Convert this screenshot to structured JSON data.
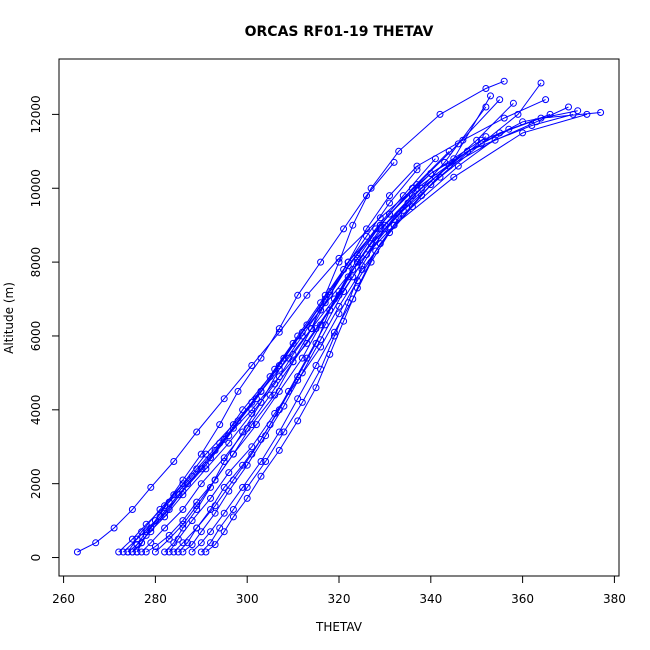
{
  "chart_data": {
    "type": "line",
    "title": "ORCAS RF01-19 THETAV",
    "xlabel": "THETAV",
    "ylabel": "Altitude (m)",
    "xlim": [
      259,
      381
    ],
    "ylim": [
      -500,
      13500
    ],
    "x_ticks": [
      260,
      280,
      300,
      320,
      340,
      360,
      380
    ],
    "y_ticks": [
      0,
      2000,
      4000,
      6000,
      8000,
      10000,
      12000
    ],
    "series_color": "#0000ff",
    "marker": "open-circle",
    "series": [
      {
        "x": [
          276,
          278,
          282,
          286,
          291,
          296,
          301,
          306,
          310,
          314,
          317,
          320,
          323,
          327,
          333,
          342,
          352,
          356
        ],
        "y": [
          150,
          600,
          1100,
          1700,
          2400,
          3100,
          3900,
          4700,
          5500,
          6200,
          7100,
          8000,
          9000,
          10000,
          11000,
          12000,
          12700,
          12900
        ]
      },
      {
        "x": [
          274,
          277,
          281,
          286,
          291,
          297,
          303,
          309,
          314,
          319,
          324,
          330,
          338,
          348,
          360,
          372
        ],
        "y": [
          150,
          700,
          1300,
          2000,
          2800,
          3600,
          4500,
          5400,
          6200,
          7000,
          8000,
          9000,
          10000,
          11000,
          11800,
          12100
        ]
      },
      {
        "x": [
          273,
          276,
          280,
          284,
          289,
          294,
          299,
          305,
          310,
          316,
          323,
          332,
          345,
          360,
          374
        ],
        "y": [
          150,
          500,
          1000,
          1700,
          2400,
          3100,
          4000,
          4900,
          5800,
          6700,
          7800,
          9000,
          10300,
          11500,
          12000
        ]
      },
      {
        "x": [
          263,
          267,
          271,
          275,
          279,
          284,
          289,
          295,
          301,
          307,
          313,
          320,
          329,
          340,
          355,
          366
        ],
        "y": [
          150,
          400,
          800,
          1300,
          1900,
          2600,
          3400,
          4300,
          5200,
          6100,
          7100,
          8100,
          9200,
          10400,
          11500,
          12000
        ]
      },
      {
        "x": [
          272,
          275,
          278,
          283,
          288,
          293,
          298,
          303,
          308,
          313,
          318,
          324,
          331,
          340,
          351,
          364,
          377
        ],
        "y": [
          150,
          500,
          900,
          1500,
          2200,
          2900,
          3700,
          4500,
          5400,
          6300,
          7200,
          8200,
          9300,
          10400,
          11300,
          11900,
          12050
        ]
      },
      {
        "x": [
          275,
          277,
          279,
          283,
          287,
          292,
          297,
          302,
          307,
          312,
          317,
          322,
          329,
          337,
          346,
          355
        ],
        "y": [
          150,
          400,
          800,
          1300,
          2000,
          2700,
          3500,
          4300,
          5200,
          6100,
          7000,
          8000,
          9000,
          10100,
          11200,
          12400
        ]
      },
      {
        "x": [
          283,
          285,
          288,
          292,
          296,
          301,
          306,
          311,
          316,
          320,
          324,
          329,
          336,
          346,
          357
        ],
        "y": [
          150,
          500,
          1000,
          1600,
          2300,
          3000,
          3900,
          4800,
          5700,
          6600,
          7500,
          8500,
          9500,
          10600,
          11600
        ]
      },
      {
        "x": [
          285,
          287,
          289,
          293,
          297,
          301,
          305,
          309,
          313,
          317,
          321,
          326,
          333,
          341,
          350,
          358
        ],
        "y": [
          150,
          400,
          800,
          1400,
          2100,
          2800,
          3600,
          4500,
          5400,
          6300,
          7200,
          8200,
          9300,
          10300,
          11300,
          12300
        ]
      },
      {
        "x": [
          290,
          292,
          294,
          297,
          300,
          304,
          308,
          312,
          316,
          319,
          322,
          325,
          330,
          337,
          348,
          362,
          371
        ],
        "y": [
          150,
          400,
          800,
          1300,
          1900,
          2600,
          3400,
          4200,
          5100,
          6000,
          6900,
          7900,
          8900,
          10000,
          11000,
          11700,
          12000
        ]
      },
      {
        "x": [
          288,
          290,
          292,
          295,
          299,
          303,
          307,
          311,
          315,
          319,
          323,
          327,
          332,
          340,
          352
        ],
        "y": [
          150,
          400,
          700,
          1200,
          1900,
          2600,
          3400,
          4300,
          5200,
          6100,
          7000,
          8000,
          9000,
          10100,
          11400
        ]
      },
      {
        "x": [
          280,
          283,
          286,
          289,
          293,
          297,
          301,
          306,
          310,
          314,
          318,
          322,
          326,
          331,
          337,
          347,
          356,
          365
        ],
        "y": [
          150,
          500,
          900,
          1400,
          2100,
          2800,
          3600,
          4400,
          5300,
          6200,
          7100,
          8000,
          8900,
          9800,
          10600,
          11300,
          11900,
          12400
        ]
      },
      {
        "x": [
          277,
          279,
          282,
          286,
          290,
          295,
          300,
          305,
          310,
          315,
          320,
          324,
          329,
          336,
          344,
          354,
          363,
          370
        ],
        "y": [
          150,
          400,
          800,
          1300,
          2000,
          2700,
          3500,
          4400,
          5300,
          6200,
          7100,
          8000,
          8900,
          9800,
          10600,
          11300,
          11800,
          12200
        ]
      },
      {
        "x": [
          275,
          276,
          278,
          281,
          285,
          290,
          295,
          301,
          307,
          313,
          318,
          323,
          328,
          335,
          343,
          352
        ],
        "y": [
          150,
          350,
          700,
          1100,
          1700,
          2400,
          3200,
          4000,
          4900,
          5800,
          6700,
          7600,
          8600,
          9600,
          10700,
          12200
        ]
      },
      {
        "x": [
          282,
          284,
          286,
          289,
          292,
          295,
          299,
          303,
          307,
          312,
          317,
          322,
          328,
          334,
          341
        ],
        "y": [
          150,
          400,
          800,
          1300,
          1900,
          2600,
          3400,
          4200,
          5100,
          6000,
          6900,
          7900,
          8900,
          9800,
          10800
        ]
      },
      {
        "x": [
          286,
          288,
          290,
          293,
          296,
          300,
          304,
          308,
          312,
          316,
          320,
          325,
          331,
          338,
          345,
          353
        ],
        "y": [
          150,
          350,
          700,
          1200,
          1800,
          2500,
          3300,
          4100,
          5000,
          5900,
          6800,
          7800,
          8800,
          9800,
          10800,
          12500
        ]
      },
      {
        "x": [
          276,
          277,
          279,
          282,
          286,
          290,
          294,
          298,
          303,
          307,
          311,
          316,
          321,
          326,
          332
        ],
        "y": [
          150,
          400,
          800,
          1400,
          2100,
          2800,
          3600,
          4500,
          5400,
          6200,
          7100,
          8000,
          8900,
          9800,
          10700
        ]
      },
      {
        "x": [
          278,
          280,
          283,
          286,
          289,
          293,
          297,
          302,
          307,
          312,
          316,
          320,
          324,
          329,
          336,
          344
        ],
        "y": [
          150,
          300,
          600,
          1000,
          1500,
          2100,
          2800,
          3600,
          4500,
          5400,
          6300,
          7200,
          8100,
          9000,
          10000,
          11000
        ]
      },
      {
        "x": [
          274,
          276,
          279,
          282,
          286,
          291,
          296,
          301,
          306,
          311,
          316,
          321,
          326,
          331,
          337
        ],
        "y": [
          150,
          350,
          700,
          1200,
          1800,
          2500,
          3300,
          4200,
          5100,
          6000,
          6900,
          7800,
          8700,
          9600,
          10500
        ]
      },
      {
        "x": [
          291,
          293,
          295,
          297,
          300,
          303,
          307,
          311,
          315,
          318,
          321,
          324,
          328,
          333
        ],
        "y": [
          150,
          350,
          700,
          1100,
          1600,
          2200,
          2900,
          3700,
          4600,
          5500,
          6400,
          7300,
          8300,
          9200
        ]
      },
      {
        "x": [
          284,
          286,
          289,
          292,
          295,
          299,
          303,
          307,
          311,
          315,
          318,
          322,
          327,
          334,
          342,
          351,
          359,
          364
        ],
        "y": [
          150,
          400,
          800,
          1300,
          1900,
          2500,
          3200,
          4000,
          4900,
          5800,
          6700,
          7600,
          8500,
          9400,
          10300,
          11200,
          12000,
          12850
        ]
      }
    ]
  }
}
